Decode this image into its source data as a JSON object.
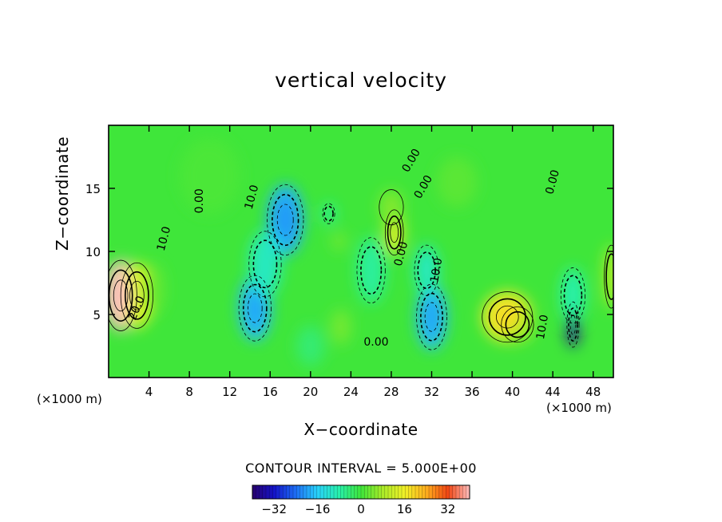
{
  "chart_data": {
    "type": "heatmap",
    "title": "vertical velocity",
    "xlabel": "X−coordinate",
    "ylabel": "Z−coordinate",
    "x_unit": "(×1000 m)",
    "z_unit": "(×1000 m)",
    "x_ticks": [
      4,
      8,
      12,
      16,
      20,
      24,
      28,
      32,
      36,
      40,
      44,
      48
    ],
    "y_ticks": [
      5,
      10,
      15
    ],
    "xlim": [
      0,
      50
    ],
    "ylim": [
      0,
      20
    ],
    "contour_interval_label": "CONTOUR INTERVAL = 5.000E+00",
    "colorbar": {
      "ticks": [
        "−32",
        "−16",
        "0",
        "16",
        "32"
      ],
      "range": [
        -40,
        40
      ]
    },
    "contour_labels": [
      {
        "text": "20.0",
        "x": 2.8,
        "z": 5.5,
        "rot": -68
      },
      {
        "text": "10.0",
        "x": 5.5,
        "z": 11.0,
        "rot": -75
      },
      {
        "text": "0.00",
        "x": 9.0,
        "z": 14.0,
        "rot": -90
      },
      {
        "text": "10.0",
        "x": 14.2,
        "z": 14.3,
        "rot": -75
      },
      {
        "text": "0.00",
        "x": 30.0,
        "z": 17.2,
        "rot": -60
      },
      {
        "text": "0.00",
        "x": 31.2,
        "z": 15.1,
        "rot": -60
      },
      {
        "text": "0.00",
        "x": 29.0,
        "z": 9.8,
        "rot": -75
      },
      {
        "text": "10.0",
        "x": 32.5,
        "z": 8.5,
        "rot": -80
      },
      {
        "text": "0.00",
        "x": 26.5,
        "z": 2.8,
        "rot": 0
      },
      {
        "text": "10.0",
        "x": 43.0,
        "z": 4.0,
        "rot": -80
      },
      {
        "text": "0.00",
        "x": 44.0,
        "z": 15.5,
        "rot": -75
      }
    ],
    "cells": [
      {
        "x": 1.2,
        "z": 6.5,
        "sx": 1.6,
        "sz": 2.8,
        "v": 40
      },
      {
        "x": 2.8,
        "z": 6.5,
        "sx": 1.6,
        "sz": 2.6,
        "v": 14
      },
      {
        "x": 4.5,
        "z": 7.0,
        "sx": 1.0,
        "sz": 2.0,
        "v": 3
      },
      {
        "x": 14.5,
        "z": 5.5,
        "sx": 1.6,
        "sz": 2.6,
        "v": -18
      },
      {
        "x": 17.5,
        "z": 12.5,
        "sx": 1.8,
        "sz": 2.8,
        "v": -19
      },
      {
        "x": 15.5,
        "z": 9.0,
        "sx": 1.6,
        "sz": 2.6,
        "v": -10
      },
      {
        "x": 20.0,
        "z": 2.5,
        "sx": 1.4,
        "sz": 1.6,
        "v": -4
      },
      {
        "x": 23.0,
        "z": 4.0,
        "sx": 1.0,
        "sz": 1.4,
        "v": 4
      },
      {
        "x": 22.8,
        "z": 10.8,
        "sx": 0.7,
        "sz": 0.7,
        "v": 4
      },
      {
        "x": 21.8,
        "z": 13.0,
        "sx": 0.6,
        "sz": 0.8,
        "v": -8
      },
      {
        "x": 26.0,
        "z": 8.5,
        "sx": 1.4,
        "sz": 2.6,
        "v": -7
      },
      {
        "x": 28.3,
        "z": 11.5,
        "sx": 0.9,
        "sz": 1.8,
        "v": 14
      },
      {
        "x": 28.0,
        "z": 13.5,
        "sx": 1.2,
        "sz": 1.4,
        "v": 5
      },
      {
        "x": 32.0,
        "z": 4.8,
        "sx": 1.5,
        "sz": 2.6,
        "v": -18
      },
      {
        "x": 31.5,
        "z": 8.5,
        "sx": 1.2,
        "sz": 2.0,
        "v": -10
      },
      {
        "x": 39.5,
        "z": 4.8,
        "sx": 2.5,
        "sz": 2.0,
        "v": 17
      },
      {
        "x": 40.5,
        "z": 4.2,
        "sx": 1.6,
        "sz": 1.4,
        "v": 8
      },
      {
        "x": 46.0,
        "z": 4.2,
        "sx": 0.6,
        "sz": 1.8,
        "v": -36
      },
      {
        "x": 46.0,
        "z": 6.5,
        "sx": 1.2,
        "sz": 2.2,
        "v": -8
      },
      {
        "x": 49.8,
        "z": 8.0,
        "sx": 0.7,
        "sz": 2.5,
        "v": 10
      },
      {
        "x": 34.5,
        "z": 15.5,
        "sx": 2.0,
        "sz": 2.0,
        "v": 2
      },
      {
        "x": 10.0,
        "z": 16.0,
        "sx": 3.0,
        "sz": 3.0,
        "v": 1
      }
    ]
  }
}
